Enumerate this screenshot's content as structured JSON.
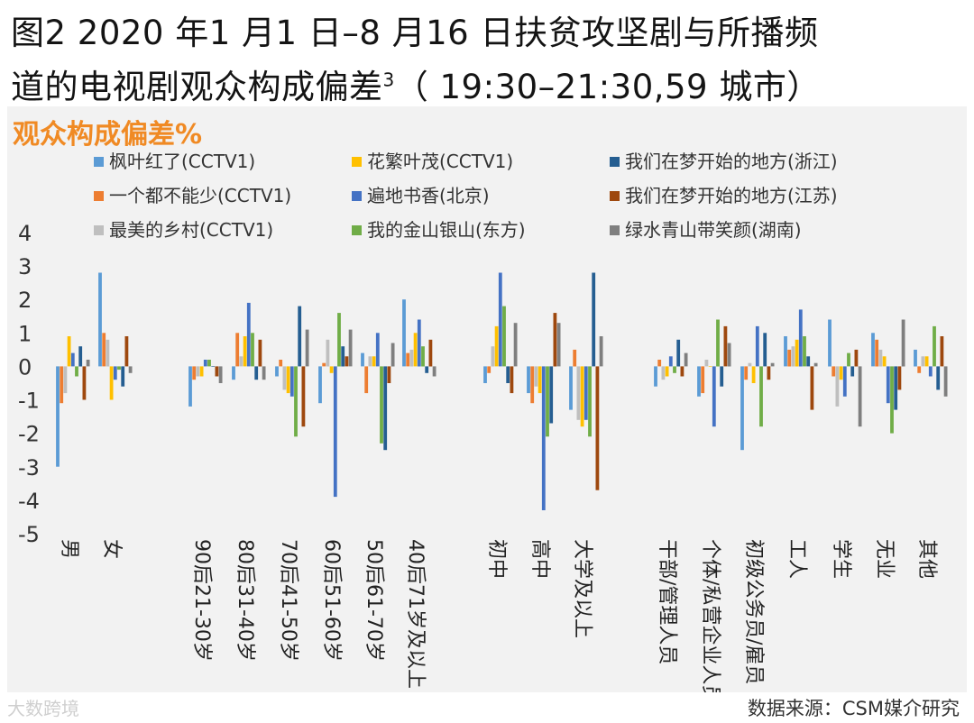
{
  "figure_title_line1": "图2 2020 年1 月1 日–8 月16 日扶贫攻坚剧与所播频",
  "figure_title_line2": "道的电视剧观众构成偏差",
  "figure_title_sup": "3",
  "figure_title_suffix": "（ 19:30–21:30,59 城市）",
  "source": "数据来源：CSM媒介研究",
  "watermark": "大数跨境",
  "chart_data": {
    "type": "bar",
    "ylabel": "观众构成偏差%",
    "ylim": [
      -5,
      4
    ],
    "yticks": [
      -5,
      -4,
      -3,
      -2,
      -1,
      0,
      1,
      2,
      3,
      4
    ],
    "categories": [
      "男",
      "女",
      "90后21-30岁",
      "80后31-40岁",
      "70后41-50岁",
      "60后51-60岁",
      "50后61-70岁",
      "40后71岁及以上",
      "初中",
      "高中",
      "大学及以上",
      "干部/管理人员",
      "个体/私营企业人员",
      "初级公务员/雇员",
      "工人",
      "学生",
      "无业",
      "其他"
    ],
    "groups": [
      [
        0,
        1
      ],
      [
        2,
        3,
        4,
        5,
        6,
        7
      ],
      [
        8,
        9,
        10
      ],
      [
        11,
        12,
        13,
        14,
        15,
        16,
        17
      ]
    ],
    "legend_position": "top",
    "series": [
      {
        "name": "枫叶红了(CCTV1)",
        "color": "#5b9bd5",
        "values": [
          -3.0,
          2.8,
          -1.2,
          -0.4,
          -0.3,
          -1.1,
          0.4,
          2.0,
          -0.5,
          -0.8,
          -1.3,
          -0.6,
          -0.9,
          -2.5,
          0.9,
          1.4,
          1.0,
          0.5
        ]
      },
      {
        "name": "一个都不能少(CCTV1)",
        "color": "#ed7d31",
        "values": [
          -1.1,
          1.0,
          -0.4,
          1.0,
          0.2,
          0.1,
          -0.8,
          0.4,
          -0.2,
          -1.1,
          0.5,
          0.2,
          -0.8,
          -0.4,
          0.5,
          -0.3,
          0.8,
          -0.2
        ]
      },
      {
        "name": "最美的乡村(CCTV1)",
        "color": "#bfbfbf",
        "values": [
          -0.8,
          0.8,
          -0.3,
          0.3,
          -0.7,
          0.8,
          0.3,
          0.5,
          0.6,
          -0.6,
          -1.6,
          -0.4,
          0.2,
          0.1,
          0.6,
          -1.2,
          0.5,
          0.3
        ]
      },
      {
        "name": "花繁叶茂(CCTV1)",
        "color": "#ffc000",
        "values": [
          0.9,
          -1.0,
          -0.3,
          0.9,
          -0.8,
          -0.2,
          0.3,
          1.0,
          1.2,
          -0.8,
          -1.8,
          -0.3,
          0.0,
          -0.5,
          0.8,
          -0.4,
          0.3,
          0.3
        ]
      },
      {
        "name": "遍地书香(北京)",
        "color": "#4472c4",
        "values": [
          0.4,
          -0.4,
          0.2,
          1.9,
          -0.9,
          -3.9,
          1.0,
          1.4,
          2.8,
          -4.3,
          -1.6,
          0.3,
          -1.8,
          1.2,
          1.7,
          -0.9,
          -1.1,
          -0.3
        ]
      },
      {
        "name": "我的金山银山(东方)",
        "color": "#70ad47",
        "values": [
          -0.3,
          -0.1,
          0.2,
          1.0,
          -2.1,
          1.6,
          -2.3,
          0.6,
          1.8,
          -2.1,
          -2.1,
          -0.2,
          1.4,
          -1.8,
          0.9,
          0.4,
          -2.0,
          1.2
        ]
      },
      {
        "name": "我们在梦开始的地方(浙江)",
        "color": "#255e91",
        "values": [
          0.6,
          -0.6,
          0.0,
          -0.4,
          1.8,
          0.6,
          -2.5,
          -0.2,
          -0.5,
          -1.7,
          2.8,
          0.8,
          -0.6,
          1.0,
          0.3,
          -0.3,
          -1.3,
          -0.7
        ]
      },
      {
        "name": "我们在梦开始的地方(江苏)",
        "color": "#9e480e",
        "values": [
          -1.0,
          0.9,
          -0.3,
          0.8,
          -1.8,
          0.3,
          -0.5,
          0.8,
          -0.8,
          1.6,
          -3.7,
          -0.3,
          1.2,
          -0.4,
          -1.3,
          0.5,
          -0.7,
          0.9
        ]
      },
      {
        "name": "绿水青山带笑颜(湖南)",
        "color": "#7f7f7f",
        "values": [
          0.2,
          -0.2,
          -0.5,
          -0.4,
          1.1,
          1.1,
          0.7,
          -0.3,
          1.3,
          1.3,
          0.9,
          0.4,
          0.7,
          0.1,
          0.1,
          -1.8,
          1.4,
          -0.9
        ]
      }
    ]
  }
}
